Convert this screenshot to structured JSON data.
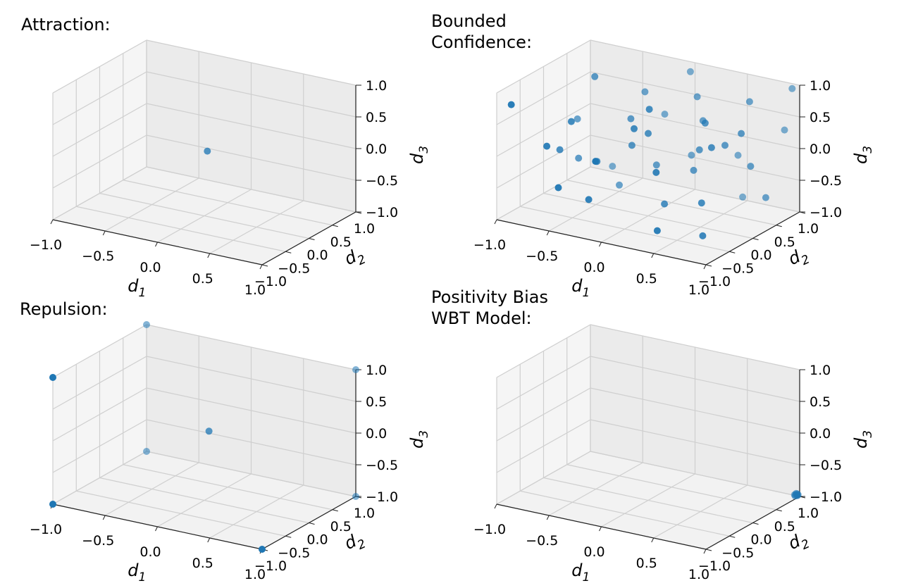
{
  "chart_data": [
    {
      "type": "scatter",
      "title": "Attraction:",
      "xlabel_base": "d",
      "xlabel_sub": "1",
      "ylabel_base": "d",
      "ylabel_sub": "2",
      "zlabel_base": "d",
      "zlabel_sub": "3",
      "xlim": [
        -1,
        1
      ],
      "ylim": [
        -1,
        1
      ],
      "zlim": [
        -1,
        1
      ],
      "x_ticks": [
        "−1.0",
        "−0.5",
        "0.0",
        "0.5",
        "1.0"
      ],
      "y_ticks": [
        "−1.0",
        "−0.5",
        "0.0",
        "0.5",
        "1.0"
      ],
      "z_ticks": [
        "−1.0",
        "−0.5",
        "0.0",
        "0.5",
        "1.0"
      ],
      "grid": true,
      "color": "#1f77b4",
      "points": [
        [
          0.02,
          0.02,
          0.02
        ]
      ]
    },
    {
      "type": "scatter",
      "title": "Bounded\nConfidence:",
      "xlabel_base": "d",
      "xlabel_sub": "1",
      "ylabel_base": "d",
      "ylabel_sub": "2",
      "zlabel_base": "d",
      "zlabel_sub": "3",
      "xlim": [
        -1,
        1
      ],
      "ylim": [
        -1,
        1
      ],
      "zlim": [
        -1,
        1
      ],
      "x_ticks": [
        "−1.0",
        "−0.5",
        "0.0",
        "0.5",
        "1.0"
      ],
      "y_ticks": [
        "−1.0",
        "−0.5",
        "0.0",
        "0.5",
        "1.0"
      ],
      "z_ticks": [
        "−1.0",
        "−0.5",
        "0.0",
        "0.5",
        "1.0"
      ],
      "grid": true,
      "color": "#1f77b4",
      "points": [
        [
          -0.95,
          -0.8,
          0.75
        ],
        [
          -0.6,
          0.2,
          0.9
        ],
        [
          -0.7,
          -0.6,
          0.1
        ],
        [
          -0.8,
          0.3,
          -0.5
        ],
        [
          -0.5,
          0.5,
          -0.9
        ],
        [
          -0.3,
          0.6,
          0.6
        ],
        [
          -0.2,
          0.8,
          0.2
        ],
        [
          0.0,
          0.9,
          0.9
        ],
        [
          0.1,
          0.7,
          -0.3
        ],
        [
          0.3,
          0.5,
          0.4
        ],
        [
          0.5,
          0.8,
          -0.2
        ],
        [
          0.7,
          0.6,
          0.8
        ],
        [
          0.9,
          0.9,
          0.3
        ],
        [
          -0.4,
          -0.2,
          -0.2
        ],
        [
          -0.2,
          0.1,
          0.0
        ],
        [
          0.0,
          -0.3,
          0.5
        ],
        [
          0.2,
          -0.1,
          -0.7
        ],
        [
          0.4,
          0.2,
          0.1
        ],
        [
          0.6,
          -0.2,
          -0.5
        ],
        [
          0.8,
          0.4,
          -0.1
        ],
        [
          -0.6,
          -0.3,
          0.4
        ],
        [
          -0.3,
          -0.6,
          -0.6
        ],
        [
          0.0,
          0.0,
          0.3
        ],
        [
          0.3,
          -0.5,
          0.0
        ],
        [
          0.5,
          0.1,
          0.6
        ],
        [
          0.7,
          -0.4,
          -0.9
        ],
        [
          0.9,
          0.5,
          -0.6
        ],
        [
          -0.8,
          -0.1,
          -0.2
        ],
        [
          -0.1,
          0.4,
          -0.4
        ],
        [
          0.2,
          0.6,
          0.7
        ],
        [
          0.6,
          0.3,
          0.2
        ],
        [
          -0.5,
          -0.8,
          -0.4
        ],
        [
          0.4,
          -0.7,
          -0.8
        ],
        [
          0.8,
          0.2,
          0.5
        ],
        [
          -0.9,
          0.5,
          0.0
        ],
        [
          0.1,
          -0.2,
          0.8
        ],
        [
          -0.3,
          0.3,
          0.3
        ],
        [
          0.5,
          0.9,
          -0.9
        ],
        [
          0.95,
          0.95,
          0.95
        ],
        [
          -0.7,
          0.8,
          -0.8
        ],
        [
          0.3,
          0.3,
          -0.3
        ],
        [
          -0.1,
          -0.9,
          0.2
        ],
        [
          0.65,
          -0.1,
          0.35
        ]
      ]
    },
    {
      "type": "scatter",
      "title": "Repulsion:",
      "xlabel_base": "d",
      "xlabel_sub": "1",
      "ylabel_base": "d",
      "ylabel_sub": "2",
      "zlabel_base": "d",
      "zlabel_sub": "3",
      "xlim": [
        -1,
        1
      ],
      "ylim": [
        -1,
        1
      ],
      "zlim": [
        -1,
        1
      ],
      "x_ticks": [
        "−1.0",
        "−0.5",
        "0.0",
        "0.5",
        "1.0"
      ],
      "y_ticks": [
        "−1.0",
        "−0.5",
        "0.0",
        "0.5",
        "1.0"
      ],
      "z_ticks": [
        "−1.0",
        "−0.5",
        "0.0",
        "0.5",
        "1.0"
      ],
      "grid": true,
      "color": "#1f77b4",
      "points": [
        [
          -1,
          -1,
          1
        ],
        [
          -1,
          1,
          1
        ],
        [
          1,
          1,
          1
        ],
        [
          -1,
          -1,
          -1
        ],
        [
          -1,
          1,
          -1
        ],
        [
          1,
          -1,
          -1
        ],
        [
          1,
          1,
          -1
        ],
        [
          0.0,
          0.1,
          0.05
        ]
      ]
    },
    {
      "type": "scatter",
      "title": "Positivity Bias\nWBT Model:",
      "xlabel_base": "d",
      "xlabel_sub": "1",
      "ylabel_base": "d",
      "ylabel_sub": "2",
      "zlabel_base": "d",
      "zlabel_sub": "3",
      "xlim": [
        -1,
        1
      ],
      "ylim": [
        -1,
        1
      ],
      "zlim": [
        -1,
        1
      ],
      "x_ticks": [
        "−1.0",
        "−0.5",
        "0.0",
        "0.5",
        "1.0"
      ],
      "y_ticks": [
        "−1.0",
        "−0.5",
        "0.0",
        "0.5",
        "1.0"
      ],
      "z_ticks": [
        "−1.0",
        "−0.5",
        "0.0",
        "0.5",
        "1.0"
      ],
      "grid": true,
      "color": "#1f77b4",
      "points": [
        [
          0.98,
          0.99,
          -0.99
        ],
        [
          0.99,
          0.98,
          -0.98
        ],
        [
          0.97,
          0.97,
          -0.99
        ],
        [
          0.99,
          0.99,
          -0.97
        ],
        [
          0.96,
          0.98,
          -0.98
        ],
        [
          0.98,
          0.96,
          -0.96
        ],
        [
          0.97,
          0.99,
          -0.96
        ],
        [
          0.99,
          0.97,
          -0.95
        ]
      ]
    }
  ]
}
